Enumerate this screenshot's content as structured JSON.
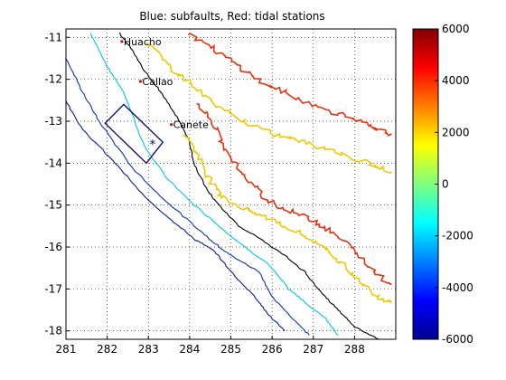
{
  "chart_data": {
    "type": "contour",
    "title": "Blue: subfaults,  Red: tidal stations",
    "xlim": [
      281,
      289
    ],
    "ylim": [
      -18.2,
      -10.8
    ],
    "xticks": [
      281,
      282,
      283,
      284,
      285,
      286,
      287,
      288
    ],
    "yticks": [
      -11,
      -12,
      -13,
      -14,
      -15,
      -16,
      -17,
      -18
    ],
    "grid": true,
    "colorbar": {
      "range": [
        -6000,
        6000
      ],
      "ticks": [
        6000,
        4000,
        2000,
        0,
        -2000,
        -4000,
        -6000
      ],
      "colormap": "jet"
    },
    "stations": [
      {
        "name": "Huacho",
        "lon": 282.4,
        "lat": -11.1
      },
      {
        "name": "Callao",
        "lon": 282.85,
        "lat": -12.05
      },
      {
        "name": "Canete",
        "lon": 283.6,
        "lat": -13.08
      }
    ],
    "subfault": {
      "corners": [
        [
          282.4,
          -12.6
        ],
        [
          283.35,
          -13.5
        ],
        [
          282.95,
          -14.0
        ],
        [
          281.95,
          -13.05
        ]
      ],
      "epicenter": [
        283.1,
        -13.55
      ]
    },
    "contours": [
      {
        "color": "#00c8e0",
        "points": [
          [
            281.6,
            -10.9
          ],
          [
            282.0,
            -11.7
          ],
          [
            282.4,
            -12.3
          ],
          [
            282.9,
            -13.6
          ],
          [
            283.4,
            -14.3
          ],
          [
            284.0,
            -14.9
          ],
          [
            284.6,
            -15.4
          ],
          [
            285.2,
            -15.9
          ],
          [
            285.9,
            -16.4
          ],
          [
            286.4,
            -17.0
          ],
          [
            286.9,
            -17.4
          ],
          [
            287.3,
            -17.7
          ],
          [
            287.6,
            -18.1
          ]
        ]
      },
      {
        "color": "#1030c0",
        "points": [
          [
            281.0,
            -11.5
          ],
          [
            281.4,
            -12.3
          ],
          [
            281.8,
            -13.0
          ],
          [
            282.6,
            -14.1
          ],
          [
            283.2,
            -14.7
          ],
          [
            284.0,
            -15.4
          ],
          [
            284.6,
            -15.9
          ],
          [
            285.0,
            -16.2
          ],
          [
            285.7,
            -16.6
          ],
          [
            286.0,
            -17.2
          ],
          [
            286.5,
            -17.7
          ],
          [
            286.9,
            -18.1
          ]
        ]
      },
      {
        "color": "#0a1a90",
        "points": [
          [
            281.0,
            -12.5
          ],
          [
            281.4,
            -13.2
          ],
          [
            282.2,
            -14.0
          ],
          [
            282.9,
            -14.8
          ],
          [
            283.5,
            -15.3
          ],
          [
            284.1,
            -15.8
          ],
          [
            284.6,
            -16.1
          ],
          [
            285.1,
            -16.7
          ],
          [
            285.6,
            -17.2
          ],
          [
            285.9,
            -17.6
          ],
          [
            286.3,
            -18.0
          ]
        ]
      },
      {
        "color": "#000000",
        "points": [
          [
            282.3,
            -10.9
          ],
          [
            282.6,
            -11.3
          ],
          [
            282.9,
            -11.8
          ],
          [
            283.3,
            -12.3
          ],
          [
            283.7,
            -12.9
          ],
          [
            284.0,
            -13.5
          ],
          [
            284.1,
            -14.0
          ],
          [
            284.4,
            -14.6
          ],
          [
            284.7,
            -15.0
          ],
          [
            285.2,
            -15.5
          ],
          [
            285.7,
            -15.8
          ],
          [
            286.3,
            -16.2
          ],
          [
            286.8,
            -16.6
          ],
          [
            287.2,
            -17.1
          ],
          [
            287.6,
            -17.5
          ],
          [
            288.0,
            -17.9
          ],
          [
            288.6,
            -18.2
          ]
        ]
      },
      {
        "color": "#f0c800",
        "points": [
          [
            283.0,
            -11.1
          ],
          [
            283.4,
            -11.6
          ],
          [
            283.9,
            -12.0
          ],
          [
            284.6,
            -12.6
          ],
          [
            285.3,
            -13.0
          ],
          [
            286.0,
            -13.3
          ],
          [
            286.8,
            -13.5
          ],
          [
            287.5,
            -13.7
          ],
          [
            288.3,
            -14.0
          ],
          [
            288.9,
            -14.2
          ]
        ]
      },
      {
        "color": "#f0c800",
        "points": [
          [
            283.9,
            -13.3
          ],
          [
            284.2,
            -13.8
          ],
          [
            284.5,
            -14.4
          ],
          [
            284.8,
            -14.8
          ],
          [
            285.3,
            -15.1
          ],
          [
            285.9,
            -15.3
          ],
          [
            286.5,
            -15.6
          ],
          [
            287.1,
            -15.9
          ],
          [
            287.6,
            -16.3
          ],
          [
            288.1,
            -16.8
          ],
          [
            288.6,
            -17.2
          ],
          [
            288.9,
            -17.3
          ]
        ]
      },
      {
        "color": "#e83010",
        "points": [
          [
            284.0,
            -10.9
          ],
          [
            284.6,
            -11.3
          ],
          [
            285.2,
            -11.7
          ],
          [
            285.8,
            -12.1
          ],
          [
            286.5,
            -12.4
          ],
          [
            287.2,
            -12.7
          ],
          [
            287.9,
            -12.9
          ],
          [
            288.5,
            -13.2
          ],
          [
            288.9,
            -13.3
          ]
        ]
      },
      {
        "color": "#e83010",
        "points": [
          [
            284.2,
            -12.6
          ],
          [
            284.6,
            -13.1
          ],
          [
            284.9,
            -13.7
          ],
          [
            285.3,
            -14.3
          ],
          [
            285.8,
            -14.8
          ],
          [
            286.3,
            -15.1
          ],
          [
            286.9,
            -15.3
          ],
          [
            287.4,
            -15.6
          ],
          [
            287.9,
            -16.0
          ],
          [
            288.4,
            -16.5
          ],
          [
            288.9,
            -16.9
          ]
        ]
      }
    ]
  }
}
